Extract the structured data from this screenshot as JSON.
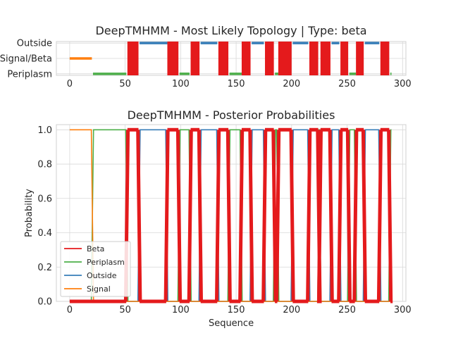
{
  "chart_data": [
    {
      "type": "line",
      "title": "DeepTMHMM - Most Likely Topology | Type: beta",
      "xlabel": "",
      "ylabel": "",
      "xlim": [
        -12,
        303
      ],
      "xticks": [
        0,
        50,
        100,
        150,
        200,
        250,
        300
      ],
      "ylim": [
        -0.1,
        2.1
      ],
      "ytick_values": [
        0,
        1,
        2
      ],
      "yticks": [
        "Periplasm",
        "Signal/Beta",
        "Outside"
      ],
      "grid": true,
      "colors": {
        "Signal": "#ff7f0e",
        "Periplasm": "#4daf4a",
        "Outside": "#377eb8",
        "Beta": "#e41a1c"
      },
      "segments": [
        {
          "label": "Signal",
          "level": 1,
          "start": 0,
          "end": 20
        },
        {
          "label": "Periplasm",
          "level": 0,
          "start": 21,
          "end": 51
        },
        {
          "label": "Beta",
          "start": 52,
          "end": 62
        },
        {
          "label": "Outside",
          "level": 2,
          "start": 63,
          "end": 88
        },
        {
          "label": "Beta",
          "start": 88,
          "end": 98
        },
        {
          "label": "Periplasm",
          "level": 0,
          "start": 99,
          "end": 108
        },
        {
          "label": "Beta",
          "start": 109,
          "end": 117
        },
        {
          "label": "Outside",
          "level": 2,
          "start": 118,
          "end": 133
        },
        {
          "label": "Beta",
          "start": 134,
          "end": 143
        },
        {
          "label": "Periplasm",
          "level": 0,
          "start": 144,
          "end": 155
        },
        {
          "label": "Beta",
          "start": 155,
          "end": 163
        },
        {
          "label": "Outside",
          "level": 2,
          "start": 164,
          "end": 175
        },
        {
          "label": "Beta",
          "start": 176,
          "end": 184
        },
        {
          "label": "Periplasm",
          "level": 0,
          "start": 185,
          "end": 188
        },
        {
          "label": "Beta",
          "start": 188,
          "end": 200
        },
        {
          "label": "Outside",
          "level": 2,
          "start": 201,
          "end": 215
        },
        {
          "label": "Beta",
          "start": 216,
          "end": 224
        },
        {
          "label": "Beta",
          "start": 226,
          "end": 235
        },
        {
          "label": "Outside",
          "level": 2,
          "start": 236,
          "end": 243
        },
        {
          "label": "Beta",
          "start": 244,
          "end": 251
        },
        {
          "label": "Periplasm",
          "level": 0,
          "start": 252,
          "end": 258
        },
        {
          "label": "Beta",
          "start": 258,
          "end": 265
        },
        {
          "label": "Outside",
          "level": 2,
          "start": 266,
          "end": 279
        },
        {
          "label": "Beta",
          "start": 280,
          "end": 288
        },
        {
          "label": "Periplasm",
          "level": 0,
          "start": 289,
          "end": 290
        }
      ]
    },
    {
      "type": "line",
      "title": "DeepTMHMM - Posterior Probabilities",
      "xlabel": "Sequence",
      "ylabel": "Probability",
      "xlim": [
        -12,
        303
      ],
      "xticks": [
        0,
        50,
        100,
        150,
        200,
        250,
        300
      ],
      "ylim": [
        0,
        1.03
      ],
      "yticks": [
        0.0,
        0.2,
        0.4,
        0.6,
        0.8,
        1.0
      ],
      "grid": true,
      "legend_position": "lower-left",
      "series": [
        {
          "name": "Beta",
          "color": "#e41a1c"
        },
        {
          "name": "Periplasm",
          "color": "#4daf4a"
        },
        {
          "name": "Outside",
          "color": "#377eb8"
        },
        {
          "name": "Signal",
          "color": "#ff7f0e"
        }
      ],
      "sequence_length": 290,
      "signal_end": 20,
      "transition_width": 2
    }
  ]
}
